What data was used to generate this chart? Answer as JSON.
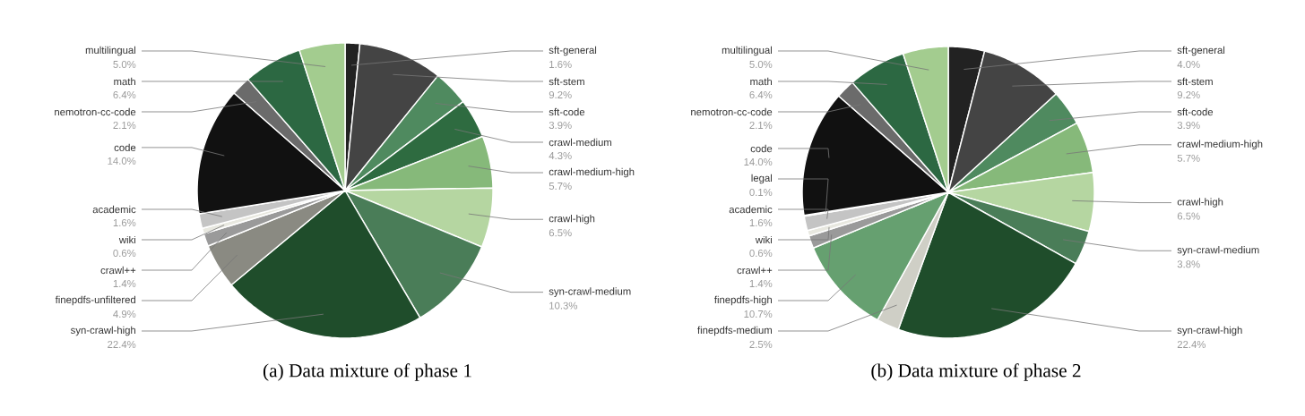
{
  "chart_data": [
    {
      "type": "pie",
      "title": "(a) Data mixture of phase 1",
      "categories": [
        "sft-general",
        "sft-stem",
        "sft-code",
        "crawl-medium",
        "crawl-medium-high",
        "crawl-high",
        "syn-crawl-medium",
        "syn-crawl-high",
        "finepdfs-unfiltered",
        "crawl++",
        "wiki",
        "academic",
        "code",
        "nemotron-cc-code",
        "math",
        "multilingual"
      ],
      "values": [
        1.6,
        9.2,
        3.9,
        4.3,
        5.7,
        6.5,
        10.3,
        22.4,
        4.9,
        1.4,
        0.6,
        1.6,
        14.0,
        2.1,
        6.4,
        5.0
      ],
      "value_labels": [
        "1.6%",
        "9.2%",
        "3.9%",
        "4.3%",
        "5.7%",
        "6.5%",
        "10.3%",
        "22.4%",
        "4.9%",
        "1.4%",
        "0.6%",
        "1.6%",
        "14.0%",
        "2.1%",
        "6.4%",
        "5.0%"
      ],
      "colors": [
        "#222222",
        "#444444",
        "#4f8a5f",
        "#2e6b40",
        "#86b97a",
        "#b5d6a1",
        "#4a7d58",
        "#1f4d2b",
        "#8a8a82",
        "#9a9a9a",
        "#e8e8e0",
        "#c4c4c4",
        "#111111",
        "#6b6b6b",
        "#2c6842",
        "#a3cc8f"
      ]
    },
    {
      "type": "pie",
      "title": "(b) Data mixture of phase 2",
      "categories": [
        "sft-general",
        "sft-stem",
        "sft-code",
        "crawl-medium-high",
        "crawl-high",
        "syn-crawl-medium",
        "syn-crawl-high",
        "finepdfs-medium",
        "finepdfs-high",
        "crawl++",
        "wiki",
        "academic",
        "legal",
        "code",
        "nemotron-cc-code",
        "math",
        "multilingual"
      ],
      "values": [
        4.0,
        9.2,
        3.9,
        5.7,
        6.5,
        3.8,
        22.4,
        2.5,
        10.7,
        1.4,
        0.6,
        1.6,
        0.1,
        14.0,
        2.1,
        6.4,
        5.0
      ],
      "value_labels": [
        "4.0%",
        "9.2%",
        "3.9%",
        "5.7%",
        "6.5%",
        "3.8%",
        "22.4%",
        "2.5%",
        "10.7%",
        "1.4%",
        "0.6%",
        "1.6%",
        "0.1%",
        "14.0%",
        "2.1%",
        "6.4%",
        "5.0%"
      ],
      "colors": [
        "#222222",
        "#444444",
        "#4f8a5f",
        "#86b97a",
        "#b5d6a1",
        "#4a7d58",
        "#1f4d2b",
        "#cfcfc6",
        "#66a070",
        "#9a9a9a",
        "#e8e8e0",
        "#c4c4c4",
        "#f2f2ec",
        "#111111",
        "#6b6b6b",
        "#2c6842",
        "#a3cc8f"
      ]
    }
  ]
}
